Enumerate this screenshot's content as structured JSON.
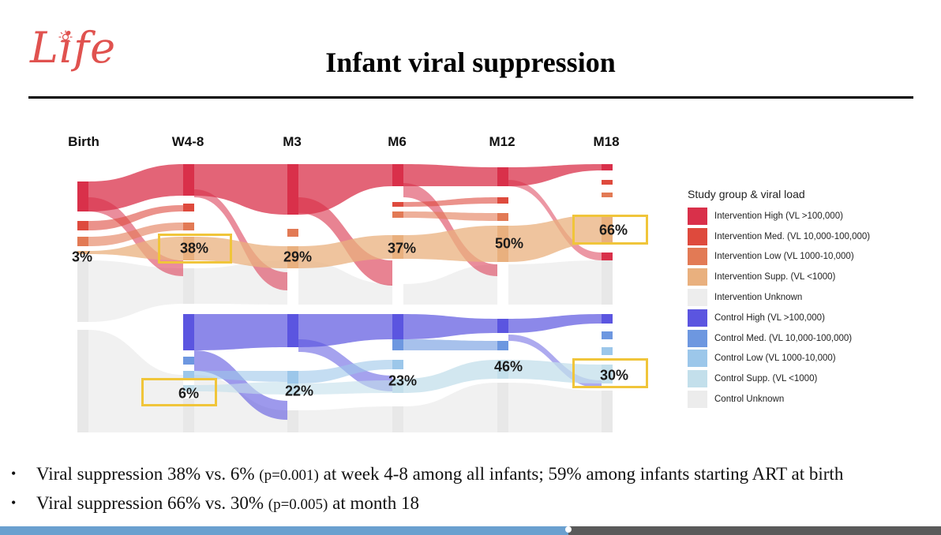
{
  "logo": {
    "text": "Life"
  },
  "title": "Infant viral suppression",
  "columns": [
    "Birth",
    "W4-8",
    "M3",
    "M6",
    "M12",
    "M18"
  ],
  "legend": {
    "title": "Study group & viral load",
    "items": [
      {
        "label": "Intervention High (VL >100,000)",
        "color": "#d9304a"
      },
      {
        "label": "Intervention Med. (VL 10,000-100,000)",
        "color": "#de4a3d"
      },
      {
        "label": "Intervention Low (VL 1000-10,000)",
        "color": "#e27a55"
      },
      {
        "label": "Intervention Supp. (VL <1000)",
        "color": "#e9b07e"
      },
      {
        "label": "Intervention Unknown",
        "color": "#ededed"
      },
      {
        "label": "Control High (VL >100,000)",
        "color": "#5b55e0"
      },
      {
        "label": "Control Med. (VL 10,000-100,000)",
        "color": "#6d97e0"
      },
      {
        "label": "Control Low (VL 1000-10,000)",
        "color": "#9cc7ea"
      },
      {
        "label": "Control Supp. (VL <1000)",
        "color": "#c3dfeb"
      },
      {
        "label": "Control Unknown",
        "color": "#ececec"
      }
    ]
  },
  "suppression": {
    "intervention": [
      "3%",
      "38%",
      "29%",
      "37%",
      "50%",
      "66%"
    ],
    "control": [
      "",
      "6%",
      "22%",
      "23%",
      "46%",
      "30%"
    ]
  },
  "bullets": [
    {
      "main": "Viral suppression 38% vs. 6%",
      "p": "(p=0.001)",
      "rest": "at week 4-8 among all infants; 59% among infants starting ART at birth"
    },
    {
      "main": "Viral suppression 66% vs. 30%",
      "p": "(p=0.005)",
      "rest": "at month 18"
    }
  ]
}
